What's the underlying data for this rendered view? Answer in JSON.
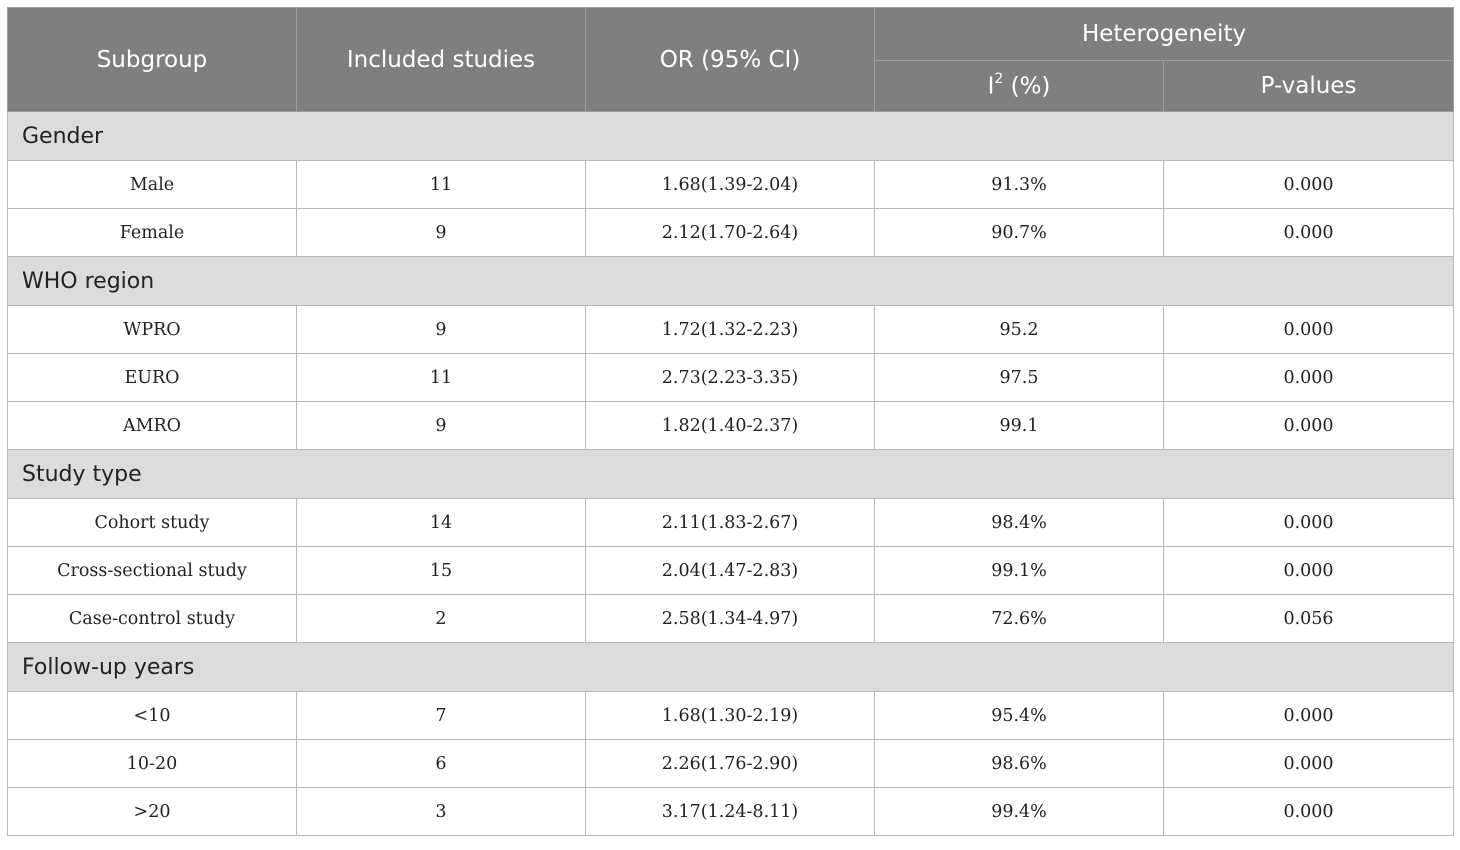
{
  "header": {
    "subgroup": "Subgroup",
    "included_studies": "Included studies",
    "or_ci": "OR (95% CI)",
    "heterogeneity": "Heterogeneity",
    "i2_base": "I",
    "i2_sup": "2",
    "i2_unit": " (%)",
    "p_values": "P-values"
  },
  "groups": [
    {
      "label": "Gender",
      "rows": [
        {
          "subgroup": "Male",
          "studies": "11",
          "or": "1.68(1.39-2.04)",
          "i2": "91.3%",
          "p": "0.000"
        },
        {
          "subgroup": "Female",
          "studies": "9",
          "or": "2.12(1.70-2.64)",
          "i2": "90.7%",
          "p": "0.000"
        }
      ]
    },
    {
      "label": "WHO region",
      "rows": [
        {
          "subgroup": "WPRO",
          "studies": "9",
          "or": "1.72(1.32-2.23)",
          "i2": "95.2",
          "p": "0.000"
        },
        {
          "subgroup": "EURO",
          "studies": "11",
          "or": "2.73(2.23-3.35)",
          "i2": "97.5",
          "p": "0.000"
        },
        {
          "subgroup": "AMRO",
          "studies": "9",
          "or": "1.82(1.40-2.37)",
          "i2": "99.1",
          "p": "0.000"
        }
      ]
    },
    {
      "label": "Study type",
      "rows": [
        {
          "subgroup": "Cohort study",
          "studies": "14",
          "or": "2.11(1.83-2.67)",
          "i2": "98.4%",
          "p": "0.000"
        },
        {
          "subgroup": "Cross-sectional study",
          "studies": "15",
          "or": "2.04(1.47-2.83)",
          "i2": "99.1%",
          "p": "0.000"
        },
        {
          "subgroup": "Case-control study",
          "studies": "2",
          "or": "2.58(1.34-4.97)",
          "i2": "72.6%",
          "p": "0.056"
        }
      ]
    },
    {
      "label": "Follow-up years",
      "rows": [
        {
          "subgroup": "<10",
          "studies": "7",
          "or": "1.68(1.30-2.19)",
          "i2": "95.4%",
          "p": "0.000"
        },
        {
          "subgroup": "10-20",
          "studies": "6",
          "or": "2.26(1.76-2.90)",
          "i2": "98.6%",
          "p": "0.000"
        },
        {
          "subgroup": ">20",
          "studies": "3",
          "or": "3.17(1.24-8.11)",
          "i2": "99.4%",
          "p": "0.000"
        }
      ]
    }
  ]
}
